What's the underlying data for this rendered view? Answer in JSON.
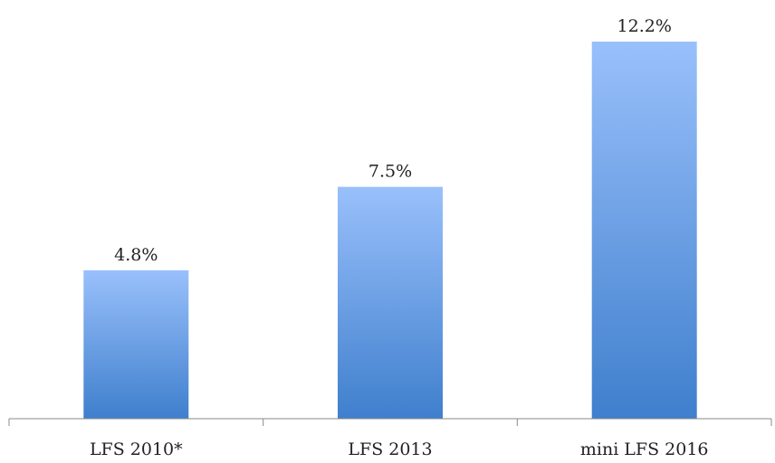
{
  "chart_data": {
    "type": "bar",
    "categories": [
      "LFS 2010*",
      "LFS 2013",
      "mini LFS 2016"
    ],
    "values": [
      4.8,
      7.5,
      12.2
    ],
    "data_labels": [
      "4.8%",
      "7.5%",
      "12.2%"
    ],
    "title": "",
    "xlabel": "",
    "ylabel": "",
    "ylim": [
      0,
      12.2
    ],
    "grid": false,
    "legend": "none",
    "colors": {
      "bar_top": "#99c0fb",
      "bar_bottom": "#3f7fcd"
    }
  }
}
